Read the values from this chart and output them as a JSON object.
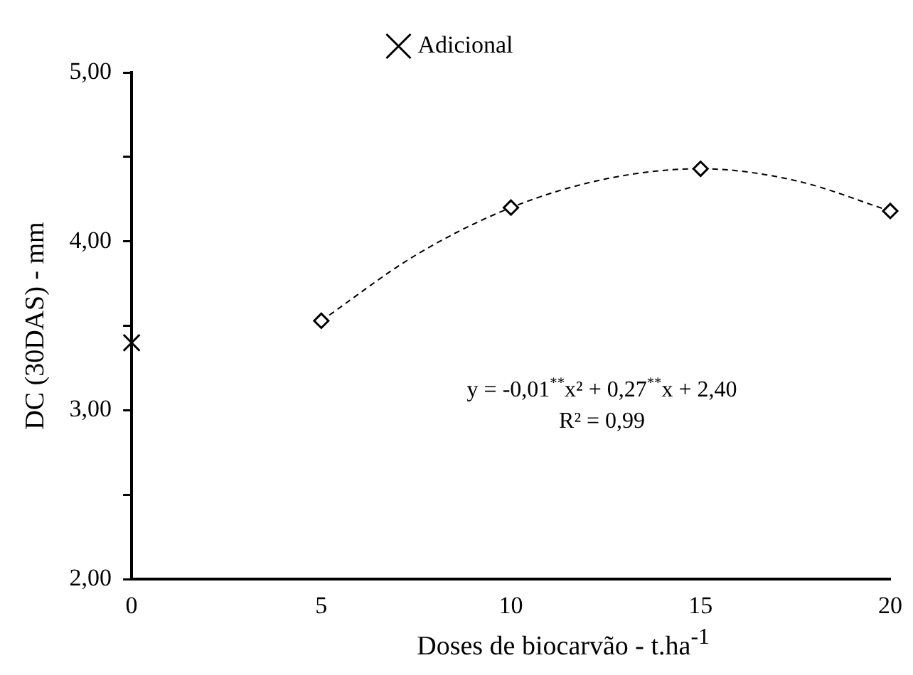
{
  "chart_data": {
    "type": "scatter",
    "xlabel": "Doses de biocarvão - t.ha$^{-1}$",
    "ylabel": "DC (30DAS) - mm",
    "series": [
      {
        "color": "#000000",
        "marker": "diamond",
        "x": [
          5,
          10,
          15,
          20
        ],
        "values": [
          3.53,
          4.2,
          4.43,
          4.18
        ]
      },
      {
        "type": "line",
        "color": "#000000",
        "marker": "none",
        "line_style": "dashed",
        "x": [
          5,
          7.5,
          10,
          12.5,
          15,
          17.5,
          20
        ],
        "values": [
          3.53,
          3.92,
          4.2,
          4.37,
          4.43,
          4.36,
          4.18
        ]
      },
      {
        "name": "Adicional",
        "color": "#000000",
        "marker": "cross",
        "x": [
          0
        ],
        "values": [
          3.4
        ]
      }
    ],
    "xlim": [
      0,
      20
    ],
    "xticks": [
      0,
      5,
      10,
      15,
      20
    ],
    "ylim": [
      2,
      5
    ],
    "yticks": [
      {
        "value": 2,
        "label": "2,00"
      },
      {
        "value": 2.5,
        "label": null
      },
      {
        "value": 3,
        "label": "3,00"
      },
      {
        "value": 3.5,
        "label": null
      },
      {
        "value": 4,
        "label": "4,00"
      },
      {
        "value": 4.5,
        "label": null
      },
      {
        "value": 5,
        "label": "5,00"
      }
    ],
    "annotations": [
      "y = -0,01$^{**}$x² + 0,27$^{**}$x + 2,40",
      "R² = 0,99"
    ],
    "legend": "top",
    "grid": false
  }
}
